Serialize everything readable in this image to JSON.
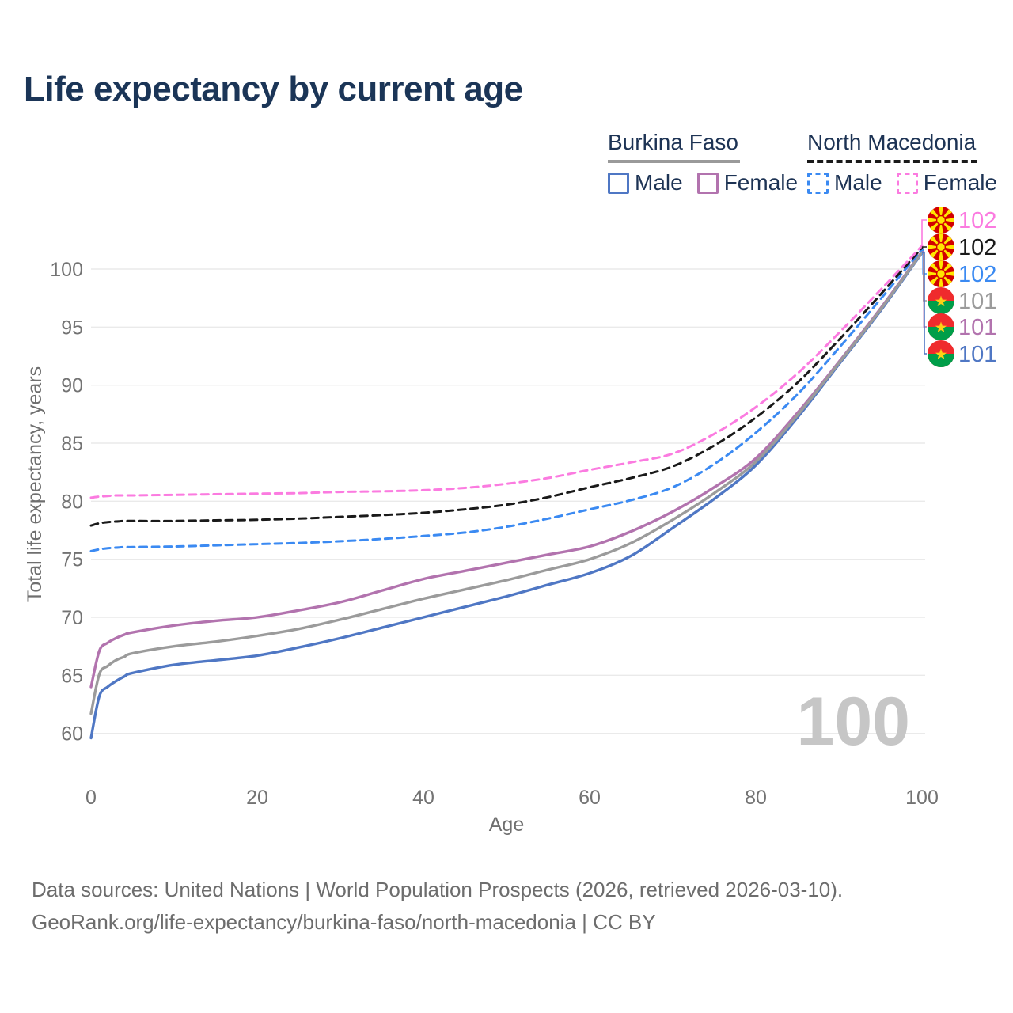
{
  "title": "Life expectancy by current age",
  "legend": {
    "groups": [
      {
        "label": "Burkina Faso",
        "underline_style": "solid",
        "underline_color": "#9a9a9a",
        "items": [
          {
            "label": "Male",
            "color": "#4f77c4",
            "style": "solid"
          },
          {
            "label": "Female",
            "color": "#b273ae",
            "style": "solid"
          }
        ]
      },
      {
        "label": "North Macedonia",
        "underline_style": "dashed",
        "underline_color": "#1a1a1a",
        "items": [
          {
            "label": "Male",
            "color": "#3b8af2",
            "style": "dashed"
          },
          {
            "label": "Female",
            "color": "#fb7be0",
            "style": "dashed"
          }
        ]
      }
    ]
  },
  "chart_data": {
    "type": "line",
    "title": "Life expectancy by current age",
    "xlabel": "Age",
    "ylabel": "Total life expectancy, years",
    "x_ticks": [
      0,
      20,
      40,
      60,
      80,
      100
    ],
    "y_ticks": [
      60,
      65,
      70,
      75,
      80,
      85,
      90,
      95,
      100
    ],
    "xlim": [
      0,
      100
    ],
    "ylim": [
      57.5,
      103.5
    ],
    "grid": "horizontal",
    "legend_position": "top-right",
    "watermark_hover_age": "100",
    "ages": [
      0,
      1,
      2,
      3,
      4,
      5,
      10,
      15,
      20,
      25,
      30,
      35,
      40,
      45,
      50,
      55,
      60,
      65,
      70,
      75,
      80,
      85,
      90,
      95,
      100
    ],
    "series": [
      {
        "id": "nm-female",
        "name": "North Macedonia Female",
        "country": "north-macedonia",
        "sex": "female",
        "style": "dashed",
        "color": "#fb7be0",
        "end_label": "102",
        "values": [
          80.3,
          80.4,
          80.45,
          80.5,
          80.5,
          80.5,
          80.55,
          80.6,
          80.65,
          80.7,
          80.8,
          80.85,
          80.95,
          81.15,
          81.5,
          82.0,
          82.7,
          83.35,
          84.1,
          85.8,
          88.1,
          91.0,
          94.5,
          98.2,
          102.0
        ]
      },
      {
        "id": "nm-both",
        "name": "North Macedonia",
        "country": "north-macedonia",
        "sex": "both",
        "style": "dashed",
        "color": "#1a1a1a",
        "end_label": "102",
        "values": [
          77.9,
          78.1,
          78.2,
          78.25,
          78.3,
          78.3,
          78.3,
          78.35,
          78.4,
          78.5,
          78.65,
          78.8,
          79.0,
          79.3,
          79.7,
          80.35,
          81.2,
          82.0,
          83.0,
          84.8,
          87.2,
          90.2,
          93.9,
          97.8,
          101.85
        ]
      },
      {
        "id": "nm-male",
        "name": "North Macedonia Male",
        "country": "north-macedonia",
        "sex": "male",
        "style": "dashed",
        "color": "#3b8af2",
        "end_label": "102",
        "values": [
          75.7,
          75.85,
          75.95,
          76.0,
          76.05,
          76.05,
          76.1,
          76.2,
          76.3,
          76.4,
          76.55,
          76.75,
          77.0,
          77.3,
          77.8,
          78.5,
          79.3,
          80.1,
          81.2,
          83.2,
          85.9,
          89.2,
          93.2,
          97.4,
          101.7
        ]
      },
      {
        "id": "bf-both",
        "name": "Burkina Faso",
        "country": "burkina-faso",
        "sex": "both",
        "style": "solid",
        "color": "#9b9b9b",
        "end_label": "101",
        "values": [
          61.7,
          65.1,
          65.8,
          66.3,
          66.6,
          66.9,
          67.5,
          67.9,
          68.4,
          69.0,
          69.8,
          70.7,
          71.6,
          72.4,
          73.2,
          74.1,
          75.0,
          76.4,
          78.4,
          80.7,
          83.4,
          87.4,
          91.9,
          96.5,
          101.45
        ]
      },
      {
        "id": "bf-female",
        "name": "Burkina Faso Female",
        "country": "burkina-faso",
        "sex": "female",
        "style": "solid",
        "color": "#b273ae",
        "end_label": "101",
        "values": [
          64.0,
          67.1,
          67.8,
          68.2,
          68.5,
          68.7,
          69.3,
          69.7,
          70.0,
          70.6,
          71.3,
          72.3,
          73.3,
          74.0,
          74.7,
          75.4,
          76.1,
          77.4,
          79.1,
          81.2,
          83.7,
          87.6,
          92.0,
          96.6,
          101.5
        ]
      },
      {
        "id": "bf-male",
        "name": "Burkina Faso Male",
        "country": "burkina-faso",
        "sex": "male",
        "style": "solid",
        "color": "#4f77c4",
        "end_label": "101",
        "values": [
          59.6,
          63.2,
          64.0,
          64.5,
          64.9,
          65.2,
          65.9,
          66.3,
          66.7,
          67.4,
          68.2,
          69.1,
          70.0,
          70.9,
          71.8,
          72.8,
          73.8,
          75.3,
          77.7,
          80.2,
          83.1,
          87.2,
          91.8,
          96.4,
          101.4
        ]
      }
    ]
  },
  "footer": {
    "line1": "Data sources: United Nations | World Population Prospects (2026, retrieved 2026-03-10).",
    "line2": "GeoRank.org/life-expectancy/burkina-faso/north-macedonia | CC BY"
  }
}
